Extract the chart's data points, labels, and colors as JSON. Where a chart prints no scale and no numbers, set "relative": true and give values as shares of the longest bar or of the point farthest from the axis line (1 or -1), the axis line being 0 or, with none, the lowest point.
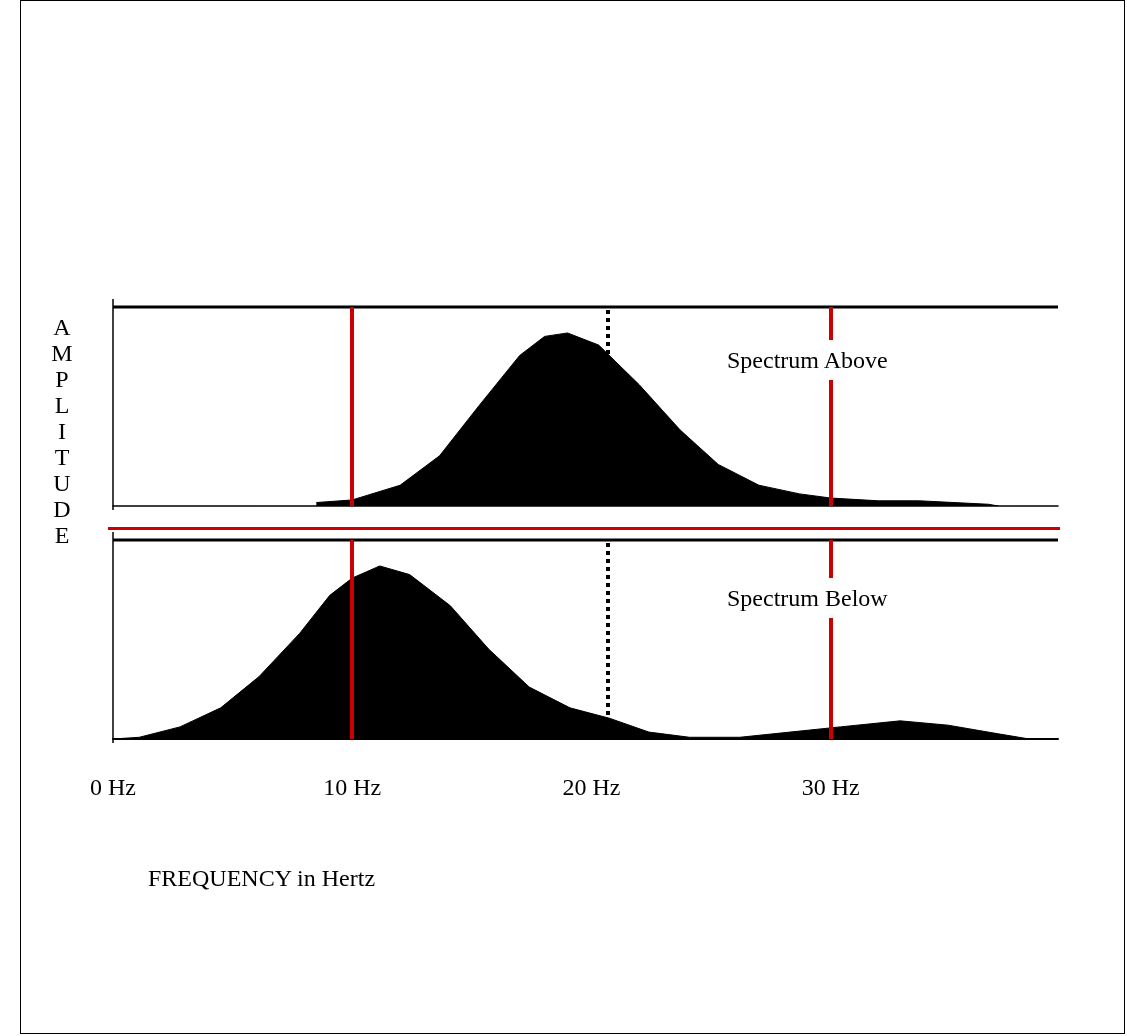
{
  "chart_data": [
    {
      "type": "area",
      "relative": true,
      "ylabel": "AMPLITUDE",
      "tick_labels": false,
      "xlim": [
        0,
        39.5
      ],
      "marker": "none",
      "annotations": [
        "Spectrum Above"
      ],
      "series": [
        {
          "color": "#000000",
          "x": [
            8.5,
            10,
            12,
            13.65,
            15.3,
            17,
            18.04,
            19,
            20.3,
            22,
            23.7,
            25.3,
            27,
            28.7,
            30,
            32,
            33.7,
            36.6,
            37
          ],
          "values": [
            0.02,
            0.035,
            0.12,
            0.29,
            0.58,
            0.87,
            0.98,
            1,
            0.93,
            0.7,
            0.44,
            0.24,
            0.12,
            0.07,
            0.046,
            0.03,
            0.03,
            0.01,
            0
          ]
        }
      ],
      "ref_lines": [
        {
          "axis": "x",
          "value": 10,
          "color": "#cc0000",
          "line_style": "solid"
        },
        {
          "axis": "x",
          "value": 30,
          "color": "#cc0000",
          "line_style": "solid"
        },
        {
          "axis": "x",
          "value": 20.7,
          "color": "#000000",
          "line_style": "dotted"
        }
      ]
    },
    {
      "type": "area",
      "relative": true,
      "xlabel": "FREQUENCY in Hertz",
      "tick_labels": "x",
      "xlim": [
        0,
        39.5
      ],
      "xticks": [
        {
          "value": 0,
          "label": "0 Hz"
        },
        {
          "value": 10,
          "label": "10 Hz"
        },
        {
          "value": 20,
          "label": "20 Hz"
        },
        {
          "value": 30,
          "label": "30 Hz"
        }
      ],
      "marker": "none",
      "annotations": [
        "Spectrum Below"
      ],
      "series": [
        {
          "color": "#000000",
          "x": [
            0,
            1.1,
            2.8,
            4.5,
            6.1,
            7.8,
            9.06,
            10,
            11.15,
            12.4,
            14.1,
            15.7,
            17.4,
            19.1,
            20.75,
            22.4,
            24.1,
            26.2,
            28.3,
            30.4,
            32.9,
            34.9,
            37,
            38.3
          ],
          "values": [
            0,
            0.01,
            0.07,
            0.18,
            0.36,
            0.61,
            0.83,
            0.93,
            1,
            0.95,
            0.77,
            0.52,
            0.3,
            0.18,
            0.12,
            0.04,
            0.01,
            0.01,
            0.04,
            0.07,
            0.105,
            0.08,
            0.03,
            0
          ]
        }
      ],
      "ref_lines": [
        {
          "axis": "x",
          "value": 10,
          "color": "#cc0000",
          "line_style": "solid"
        },
        {
          "axis": "x",
          "value": 30,
          "color": "#cc0000",
          "line_style": "solid"
        },
        {
          "axis": "x",
          "value": 20.7,
          "color": "#000000",
          "line_style": "dotted"
        }
      ]
    }
  ]
}
